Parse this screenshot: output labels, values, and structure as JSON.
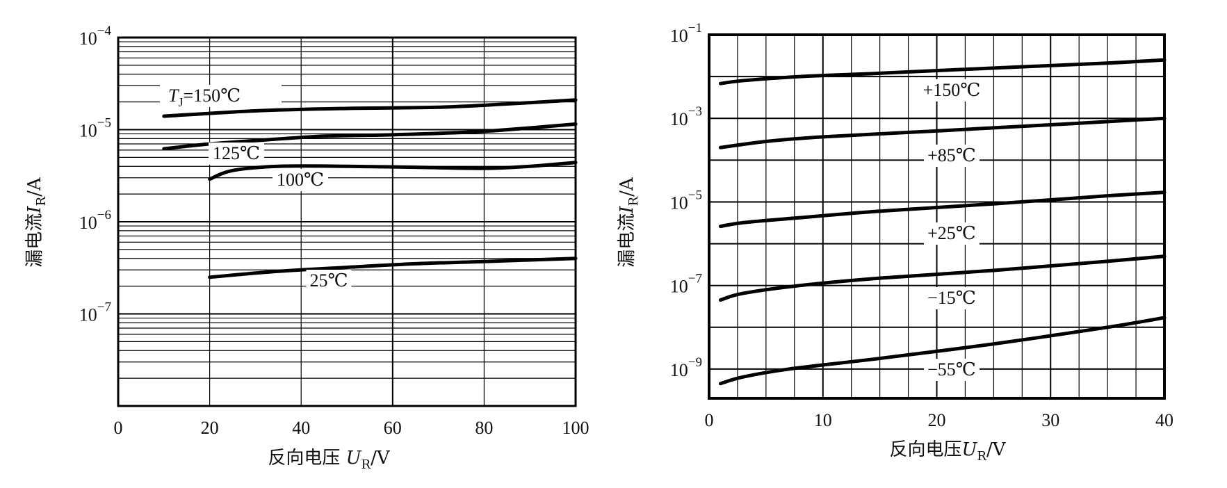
{
  "chart_data": [
    {
      "type": "line",
      "scale_y": "log",
      "xlabel": "反向电压 U_R/V",
      "ylabel": "漏电流I_R/A",
      "xlim": [
        0,
        100
      ],
      "ylim_exp": [
        -8,
        -4
      ],
      "x_ticks": [
        0,
        20,
        40,
        60,
        80,
        100
      ],
      "x_tick_labels": [
        "0",
        "20",
        "40",
        "60",
        "80",
        "100"
      ],
      "y_ticks_exp": [
        -4,
        -5,
        -6,
        -7
      ],
      "grid": true,
      "series": [
        {
          "name": "T_J=150℃",
          "x": [
            10,
            30,
            50,
            70,
            85,
            100
          ],
          "y": [
            1.4e-05,
            1.6e-05,
            1.7e-05,
            1.75e-05,
            1.9e-05,
            2.1e-05
          ]
        },
        {
          "name": "125℃",
          "x": [
            10,
            20,
            30,
            45,
            60,
            80,
            100
          ],
          "y": [
            6.2e-06,
            7e-06,
            7.6e-06,
            8.5e-06,
            8.8e-06,
            9.6e-06,
            1.15e-05
          ]
        },
        {
          "name": "100℃",
          "x": [
            20,
            25,
            35,
            50,
            65,
            80,
            90,
            100
          ],
          "y": [
            2.9e-06,
            3.6e-06,
            4e-06,
            4e-06,
            3.9e-06,
            3.8e-06,
            4e-06,
            4.4e-06
          ]
        },
        {
          "name": "25℃",
          "x": [
            20,
            35,
            50,
            65,
            80,
            100
          ],
          "y": [
            2.5e-07,
            2.9e-07,
            3.2e-07,
            3.5e-07,
            3.7e-07,
            4e-07
          ]
        }
      ]
    },
    {
      "type": "line",
      "scale_y": "log",
      "xlabel": "反向电压U_R/V",
      "ylabel": "漏电流I_R/A",
      "xlim": [
        0,
        40
      ],
      "ylim_exp": [
        -9.7,
        -1
      ],
      "x_ticks": [
        0,
        10,
        20,
        30,
        40
      ],
      "x_tick_labels": [
        "0",
        "10",
        "20",
        "30",
        "40"
      ],
      "y_ticks_exp": [
        -1,
        -3,
        -5,
        -7,
        -9
      ],
      "grid": true,
      "series": [
        {
          "name": "+150℃",
          "x": [
            1,
            3,
            8,
            15,
            25,
            35,
            40
          ],
          "y": [
            0.0068,
            0.008,
            0.01,
            0.012,
            0.016,
            0.021,
            0.025
          ]
        },
        {
          "name": "+85℃",
          "x": [
            1,
            5,
            10,
            20,
            30,
            40
          ],
          "y": [
            0.0002,
            0.00028,
            0.00036,
            0.0005,
            0.0007,
            0.001
          ]
        },
        {
          "name": "+25℃",
          "x": [
            1,
            3,
            8,
            15,
            25,
            35,
            40
          ],
          "y": [
            2.6e-06,
            3.2e-06,
            4.2e-06,
            6e-06,
            9e-06,
            1.4e-05,
            1.7e-05
          ]
        },
        {
          "name": "−15℃",
          "x": [
            1,
            3,
            8,
            15,
            25,
            35,
            40
          ],
          "y": [
            4.5e-08,
            6.5e-08,
            1e-07,
            1.5e-07,
            2.3e-07,
            3.8e-07,
            5e-07
          ]
        },
        {
          "name": "−55℃",
          "x": [
            1,
            3,
            7,
            15,
            25,
            35,
            40
          ],
          "y": [
            4.5e-10,
            6.5e-10,
            1e-09,
            1.8e-09,
            4e-09,
            1e-08,
            1.7e-08
          ]
        }
      ]
    }
  ]
}
